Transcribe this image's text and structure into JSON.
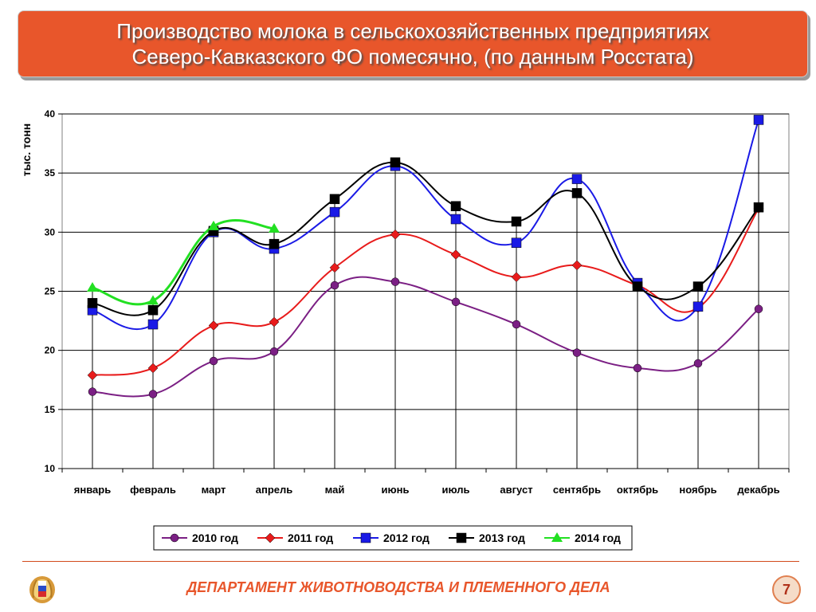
{
  "title": {
    "line1": "Производство молока в сельскохозяйственных предприятиях",
    "line2": "Северо-Кавказского ФО помесячно, (по данным Росстата)"
  },
  "footer": {
    "department": "ДЕПАРТАМЕНТ ЖИВОТНОВОДСТВА И ПЛЕМЕННОГО ДЕЛА",
    "page_number": "7"
  },
  "colors": {
    "title_bg": "#e8562b",
    "footer_text": "#e8562b"
  },
  "chart_data": {
    "type": "line",
    "ylabel": "тыс. тонн",
    "ylim": [
      10,
      40
    ],
    "yticks": [
      10,
      15,
      20,
      25,
      30,
      35,
      40
    ],
    "grid": "horizontal",
    "legend_position": "bottom",
    "categories": [
      "январь",
      "февраль",
      "март",
      "апрель",
      "май",
      "июнь",
      "июль",
      "август",
      "сентябрь",
      "октябрь",
      "ноябрь",
      "декабрь"
    ],
    "series": [
      {
        "name": "2010 год",
        "color": "#7b1f84",
        "marker": "circle",
        "values": [
          16.5,
          16.3,
          19.1,
          19.9,
          25.5,
          25.8,
          24.1,
          22.2,
          19.8,
          18.5,
          18.9,
          23.5
        ]
      },
      {
        "name": "2011 год",
        "color": "#e81b1b",
        "marker": "diamond",
        "values": [
          17.9,
          18.5,
          22.1,
          22.4,
          27.0,
          29.8,
          28.1,
          26.2,
          27.2,
          25.5,
          23.6,
          32.0
        ]
      },
      {
        "name": "2012 год",
        "color": "#1a1ae6",
        "marker": "square",
        "values": [
          23.4,
          22.2,
          30.0,
          28.6,
          31.7,
          35.6,
          31.1,
          29.1,
          34.5,
          25.7,
          23.7,
          39.5
        ]
      },
      {
        "name": "2013 год",
        "color": "#000000",
        "marker": "square",
        "values": [
          24.0,
          23.4,
          30.1,
          29.0,
          32.8,
          35.9,
          32.2,
          30.9,
          33.3,
          25.4,
          25.4,
          32.1
        ]
      },
      {
        "name": "2014 год",
        "color": "#22e022",
        "marker": "triangle",
        "values": [
          25.3,
          24.2,
          30.5,
          30.3,
          null,
          null,
          null,
          null,
          null,
          null,
          null,
          null
        ]
      }
    ]
  }
}
